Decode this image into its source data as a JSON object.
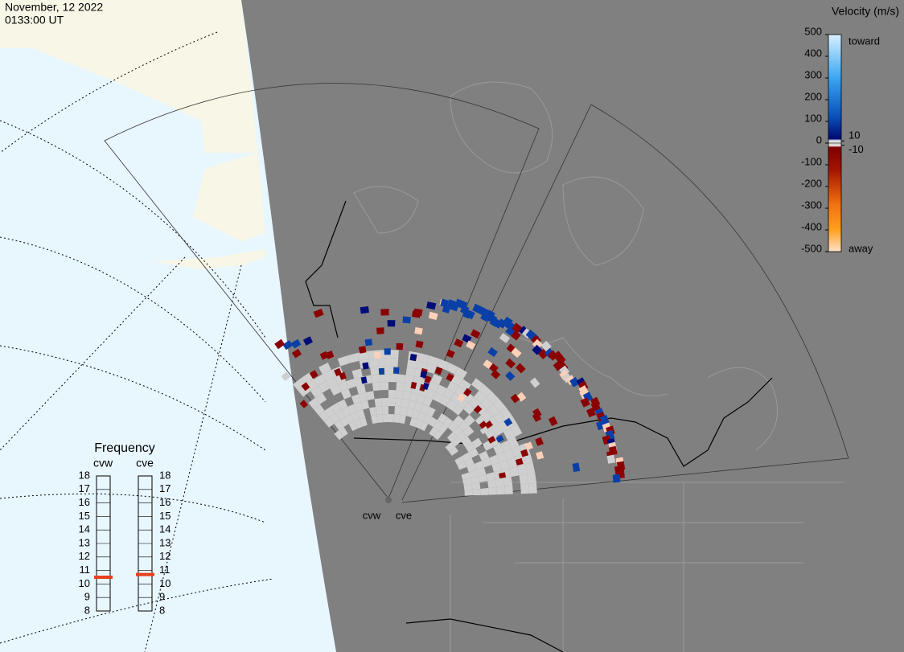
{
  "header": {
    "date": "November, 12 2022",
    "time": "0133:00 UT"
  },
  "colorbar": {
    "title": "Velocity (m/s)",
    "range": [
      -500,
      500
    ],
    "ticks": [
      500,
      400,
      300,
      200,
      100,
      0,
      -100,
      -200,
      -300,
      -400,
      -500
    ],
    "inner_ticks": [
      10,
      -10
    ],
    "top_label": "toward",
    "bottom_label": "away"
  },
  "frequency": {
    "title": "Frequency",
    "range": [
      8,
      18
    ],
    "ticks": [
      18,
      17,
      16,
      15,
      14,
      13,
      12,
      11,
      10,
      9,
      8
    ],
    "radars": [
      {
        "name": "cvw",
        "value": 10.5,
        "color": "#e8401c"
      },
      {
        "name": "cve",
        "value": 10.7,
        "color": "#e8401c"
      }
    ]
  },
  "sites": [
    "cvw",
    "cve"
  ]
}
